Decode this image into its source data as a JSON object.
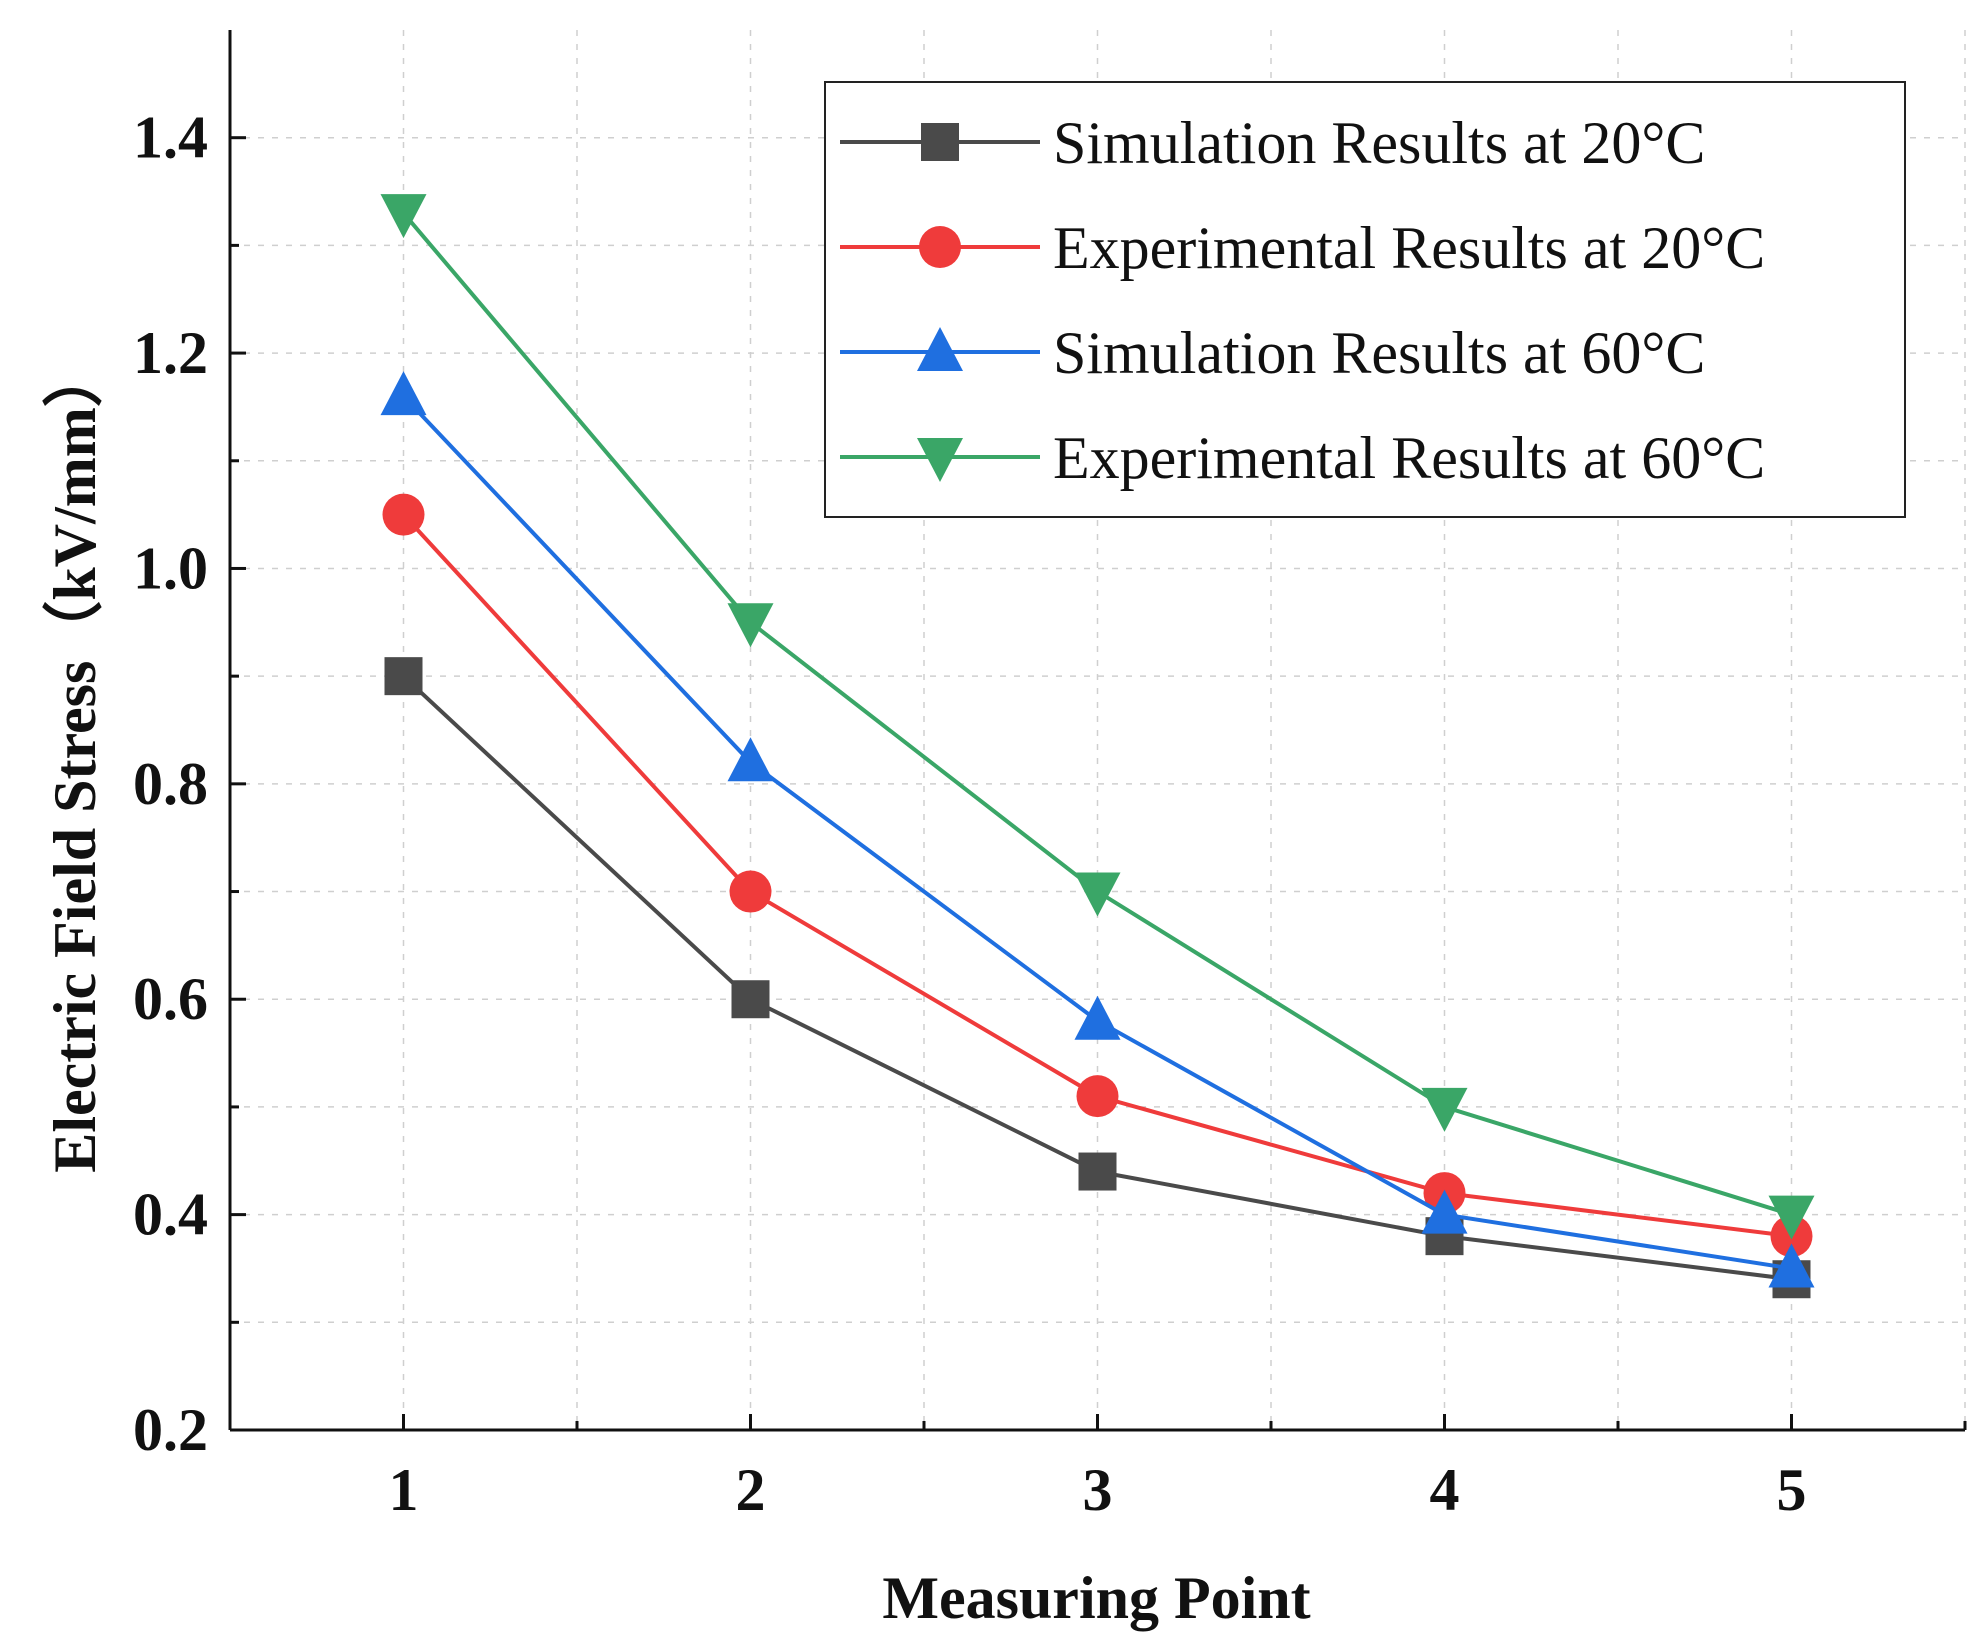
{
  "chart_data": {
    "type": "line",
    "title": "",
    "xlabel": "Measuring Point",
    "ylabel": "Electric Field Stress（kV/mm）",
    "x": [
      1,
      2,
      3,
      4,
      5
    ],
    "xticks": [
      "1",
      "2",
      "3",
      "4",
      "5"
    ],
    "xlim": [
      0.5,
      5.5
    ],
    "ylim": [
      0.2,
      1.5
    ],
    "yticks": [
      "0.2",
      "0.4",
      "0.6",
      "0.8",
      "1.0",
      "1.2",
      "1.4"
    ],
    "grid": true,
    "legend_position": "top-right",
    "series": [
      {
        "name": "Simulation Results at 20°C",
        "color": "#4a4a4a",
        "marker": "square",
        "values": [
          0.9,
          0.6,
          0.44,
          0.38,
          0.34
        ]
      },
      {
        "name": "Experimental Results at 20°C",
        "color": "#ef3b3b",
        "marker": "circle",
        "values": [
          1.05,
          0.7,
          0.51,
          0.42,
          0.38
        ]
      },
      {
        "name": "Simulation Results at 60°C",
        "color": "#1f6fe0",
        "marker": "triangle-up",
        "values": [
          1.16,
          0.82,
          0.58,
          0.4,
          0.35
        ]
      },
      {
        "name": "Experimental Results at 60°C",
        "color": "#3aa667",
        "marker": "triangle-down",
        "values": [
          1.33,
          0.95,
          0.7,
          0.5,
          0.4
        ]
      }
    ]
  }
}
